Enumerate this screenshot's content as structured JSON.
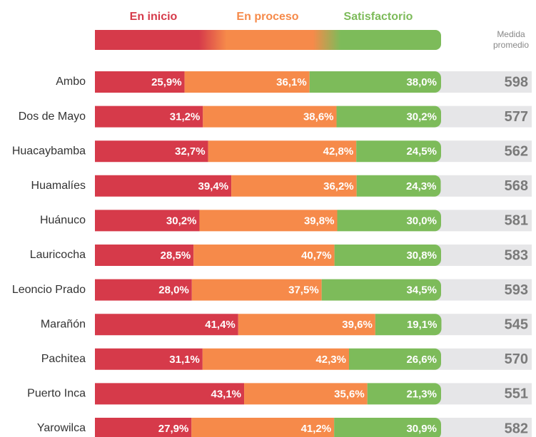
{
  "chart_data": {
    "type": "bar",
    "orientation": "horizontal",
    "stacked": true,
    "categories": [
      "Ambo",
      "Dos de Mayo",
      "Huacaybamba",
      "Huamalíes",
      "Huánuco",
      "Lauricocha",
      "Leoncio Prado",
      "Marañón",
      "Pachitea",
      "Puerto Inca",
      "Yarowilca"
    ],
    "xlim": [
      0,
      100
    ],
    "series": [
      {
        "name": "En inicio",
        "color": "#d63a4a",
        "values": [
          25.9,
          31.2,
          32.7,
          39.4,
          30.2,
          28.5,
          28.0,
          41.4,
          31.1,
          43.1,
          27.9
        ],
        "value_labels": [
          "25,9%",
          "31,2%",
          "32,7%",
          "39,4%",
          "30,2%",
          "28,5%",
          "28,0%",
          "41,4%",
          "31,1%",
          "43,1%",
          "27,9%"
        ]
      },
      {
        "name": "En proceso",
        "color": "#f68a4a",
        "values": [
          36.1,
          38.6,
          42.8,
          36.2,
          39.8,
          40.7,
          37.5,
          39.6,
          42.3,
          35.6,
          41.2
        ],
        "value_labels": [
          "36,1%",
          "38,6%",
          "42,8%",
          "36,2%",
          "39,8%",
          "40,7%",
          "37,5%",
          "39,6%",
          "42,3%",
          "35,6%",
          "41,2%"
        ]
      },
      {
        "name": "Satisfactorio",
        "color": "#7dbb5a",
        "values": [
          38.0,
          30.2,
          24.5,
          24.3,
          30.0,
          30.8,
          34.5,
          19.1,
          26.6,
          21.3,
          30.9
        ],
        "value_labels": [
          "38,0%",
          "30,2%",
          "24,5%",
          "24,3%",
          "30,0%",
          "30,8%",
          "34,5%",
          "19,1%",
          "26,6%",
          "21,3%",
          "30,9%"
        ]
      }
    ],
    "side_column": {
      "title": [
        "Medida",
        "promedio"
      ],
      "values": [
        598,
        577,
        562,
        568,
        581,
        583,
        593,
        545,
        570,
        551,
        582
      ]
    }
  }
}
